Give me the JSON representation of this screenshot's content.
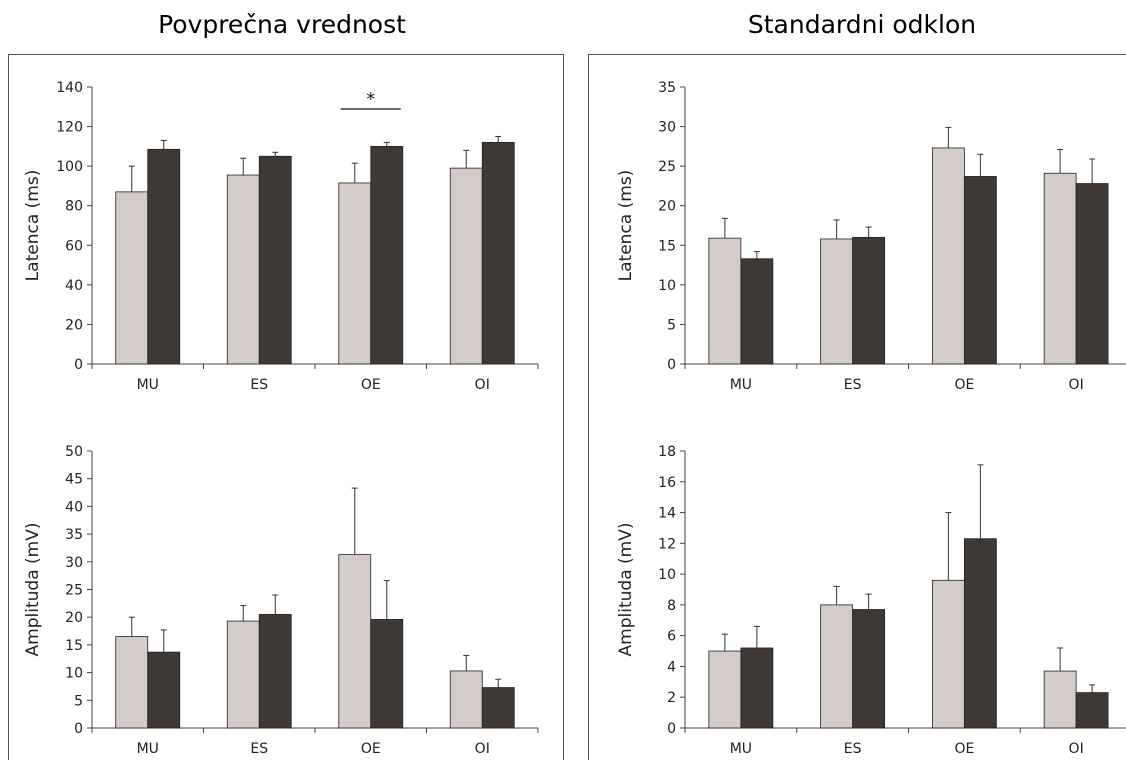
{
  "titles": {
    "left": "Povprečna vrednost",
    "right": "Standardni odklon"
  },
  "colors": {
    "light": "#d4ccc8",
    "dark": "#3e3935",
    "axis": "#444444",
    "error": "#333333"
  },
  "chart_data": [
    {
      "type": "bar",
      "panel": "Povprečna vrednost",
      "ylabel": "Latenca (ms)",
      "categories": [
        "MU",
        "ES",
        "OE",
        "OI"
      ],
      "ylim": [
        0,
        140
      ],
      "yticks": [
        0,
        20,
        40,
        60,
        80,
        100,
        120,
        140
      ],
      "series": [
        {
          "values": [
            87,
            95.5,
            91.5,
            99
          ],
          "errors": [
            13,
            8.5,
            10,
            9
          ]
        },
        {
          "values": [
            108.5,
            105,
            110,
            112
          ],
          "errors": [
            4.5,
            2,
            2,
            3
          ]
        }
      ],
      "annotation": {
        "text": "*",
        "category": "OE"
      }
    },
    {
      "type": "bar",
      "panel": "Standardni odklon",
      "ylabel": "Latenca (ms)",
      "categories": [
        "MU",
        "ES",
        "OE",
        "OI"
      ],
      "ylim": [
        0,
        35
      ],
      "yticks": [
        0,
        5,
        10,
        15,
        20,
        25,
        30,
        35
      ],
      "series": [
        {
          "values": [
            15.9,
            15.8,
            27.3,
            24.1
          ],
          "errors": [
            2.5,
            2.4,
            2.6,
            3
          ]
        },
        {
          "values": [
            13.3,
            16,
            23.7,
            22.8
          ],
          "errors": [
            0.9,
            1.3,
            2.8,
            3.1
          ]
        }
      ]
    },
    {
      "type": "bar",
      "panel": "Povprečna vrednost",
      "ylabel": "Amplituda (mV)",
      "categories": [
        "MU",
        "ES",
        "OE",
        "OI"
      ],
      "ylim": [
        0,
        50
      ],
      "yticks": [
        0,
        5,
        10,
        15,
        20,
        25,
        30,
        35,
        40,
        45,
        50
      ],
      "series": [
        {
          "values": [
            16.5,
            19.3,
            31.3,
            10.3
          ],
          "errors": [
            3.5,
            2.8,
            12,
            2.8
          ]
        },
        {
          "values": [
            13.7,
            20.5,
            19.6,
            7.3
          ],
          "errors": [
            4,
            3.5,
            7,
            1.5
          ]
        }
      ]
    },
    {
      "type": "bar",
      "panel": "Standardni odklon",
      "ylabel": "Amplituda (mV)",
      "categories": [
        "MU",
        "ES",
        "OE",
        "OI"
      ],
      "ylim": [
        0,
        18
      ],
      "yticks": [
        0,
        2,
        4,
        6,
        8,
        10,
        12,
        14,
        16,
        18
      ],
      "series": [
        {
          "values": [
            5,
            8,
            9.6,
            3.7
          ],
          "errors": [
            1.1,
            1.2,
            4.4,
            1.5
          ]
        },
        {
          "values": [
            5.2,
            7.7,
            12.3,
            2.3
          ],
          "errors": [
            1.4,
            1,
            4.8,
            0.5
          ]
        }
      ]
    }
  ]
}
